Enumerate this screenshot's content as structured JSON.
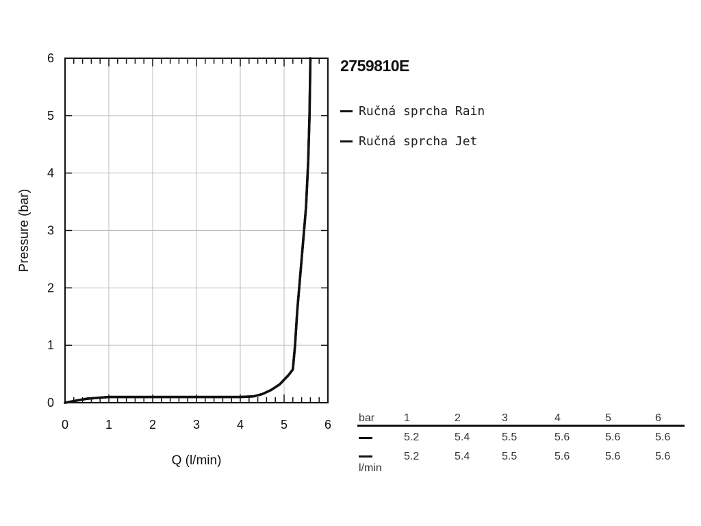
{
  "chart_data": {
    "type": "line",
    "xlabel": "Q (l/min)",
    "ylabel": "Pressure (bar)",
    "xlim": [
      0,
      6
    ],
    "ylim": [
      0,
      6
    ],
    "x_ticks": [
      "0",
      "1",
      "2",
      "3",
      "4",
      "5",
      "6"
    ],
    "y_ticks": [
      "0",
      "1",
      "2",
      "3",
      "4",
      "5",
      "6"
    ],
    "grid": true,
    "legend_position": "right",
    "series": [
      {
        "name": "Ručná sprcha Rain",
        "color": "#111111",
        "points": [
          [
            0.0,
            0.0
          ],
          [
            0.5,
            0.07
          ],
          [
            1.0,
            0.1
          ],
          [
            2.0,
            0.1
          ],
          [
            3.0,
            0.1
          ],
          [
            4.0,
            0.1
          ],
          [
            4.3,
            0.11
          ],
          [
            4.5,
            0.15
          ],
          [
            4.7,
            0.22
          ],
          [
            4.9,
            0.32
          ],
          [
            5.1,
            0.48
          ],
          [
            5.2,
            0.58
          ],
          [
            5.25,
            1.0
          ],
          [
            5.3,
            1.6
          ],
          [
            5.4,
            2.5
          ],
          [
            5.5,
            3.4
          ],
          [
            5.55,
            4.2
          ],
          [
            5.58,
            5.0
          ],
          [
            5.6,
            6.0
          ]
        ]
      },
      {
        "name": "Ručná sprcha Jet",
        "color": "#111111",
        "points": [
          [
            0.0,
            0.0
          ],
          [
            0.5,
            0.07
          ],
          [
            1.0,
            0.1
          ],
          [
            2.0,
            0.1
          ],
          [
            3.0,
            0.1
          ],
          [
            4.0,
            0.1
          ],
          [
            4.3,
            0.11
          ],
          [
            4.5,
            0.15
          ],
          [
            4.7,
            0.22
          ],
          [
            4.9,
            0.32
          ],
          [
            5.1,
            0.48
          ],
          [
            5.2,
            0.58
          ],
          [
            5.25,
            1.0
          ],
          [
            5.3,
            1.6
          ],
          [
            5.4,
            2.5
          ],
          [
            5.5,
            3.4
          ],
          [
            5.55,
            4.2
          ],
          [
            5.58,
            5.0
          ],
          [
            5.6,
            6.0
          ]
        ]
      }
    ]
  },
  "product_code": "2759810E",
  "legend": {
    "items": [
      {
        "label": "Ručná sprcha Rain"
      },
      {
        "label": "Ručná sprcha Jet"
      }
    ]
  },
  "flow_table": {
    "row_header": "bar",
    "unit_label": "l/min",
    "pressures": [
      "1",
      "2",
      "3",
      "4",
      "5",
      "6"
    ],
    "rows": [
      {
        "values": [
          "5.2",
          "5.4",
          "5.5",
          "5.6",
          "5.6",
          "5.6"
        ]
      },
      {
        "values": [
          "5.2",
          "5.4",
          "5.5",
          "5.6",
          "5.6",
          "5.6"
        ]
      }
    ]
  }
}
